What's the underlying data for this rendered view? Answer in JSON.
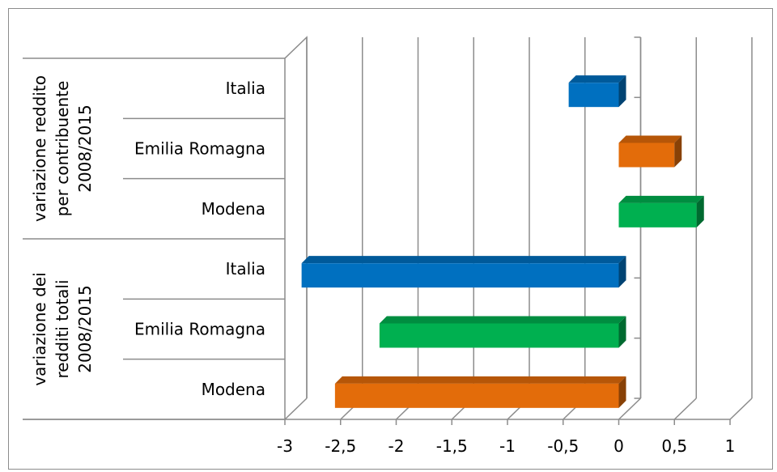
{
  "chart_data": {
    "type": "bar",
    "orientation": "horizontal",
    "three_d": true,
    "x_ticks": [
      "-3",
      "-2,5",
      "-2",
      "-1,5",
      "-1",
      "-0,5",
      "0",
      "0,5",
      "1"
    ],
    "xlim": [
      -3,
      1
    ],
    "grid": true,
    "legend": "none",
    "groups": [
      {
        "label": "variazione reddito per contribuente 2008/2015",
        "label_lines": [
          "variazione reddito",
          "per contribuente",
          "2008/2015"
        ],
        "bars": [
          {
            "category": "Italia",
            "value": -0.45,
            "color": "#0070C0"
          },
          {
            "category": "Emilia Romagna",
            "value": 0.5,
            "color": "#E36C0A"
          },
          {
            "category": "Modena",
            "value": 0.7,
            "color": "#00B050"
          }
        ]
      },
      {
        "label": "variazione dei redditi totali 2008/2015",
        "label_lines": [
          "variazione dei",
          "redditi totali",
          "2008/2015"
        ],
        "bars": [
          {
            "category": "Italia",
            "value": -2.85,
            "color": "#0070C0"
          },
          {
            "category": "Emilia Romagna",
            "value": -2.15,
            "color": "#00B050"
          },
          {
            "category": "Modena",
            "value": -2.55,
            "color": "#E36C0A"
          }
        ]
      }
    ]
  }
}
